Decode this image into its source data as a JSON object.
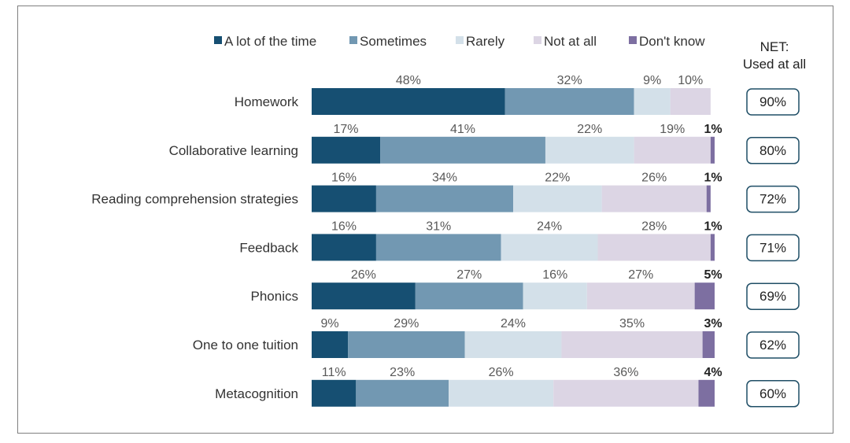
{
  "chart_data": {
    "type": "bar",
    "orientation": "horizontal",
    "stacked": true,
    "categories": [
      "Homework",
      "Collaborative learning",
      "Reading comprehension strategies",
      "Feedback",
      "Phonics",
      "One to one tuition",
      "Metacognition"
    ],
    "series": [
      {
        "name": "A lot of the time",
        "color": "#164f72",
        "values": [
          48,
          17,
          16,
          16,
          26,
          9,
          11
        ]
      },
      {
        "name": "Sometimes",
        "color": "#7298b2",
        "values": [
          32,
          41,
          34,
          31,
          27,
          29,
          23
        ]
      },
      {
        "name": "Rarely",
        "color": "#d3e0e9",
        "values": [
          9,
          22,
          22,
          24,
          16,
          24,
          26
        ]
      },
      {
        "name": "Not at  all",
        "color": "#dcd5e4",
        "values": [
          10,
          19,
          26,
          28,
          27,
          35,
          36
        ]
      },
      {
        "name": "Don't know",
        "color": "#7d6fa1",
        "values": [
          0,
          1,
          1,
          1,
          5,
          3,
          4
        ]
      }
    ],
    "series_labels": [
      [
        "48%",
        "32%",
        "9%",
        "10%",
        ""
      ],
      [
        "17%",
        "41%",
        "22%",
        "19%",
        "1%"
      ],
      [
        "16%",
        "34%",
        "22%",
        "26%",
        "1%"
      ],
      [
        "16%",
        "31%",
        "24%",
        "28%",
        "1%"
      ],
      [
        "26%",
        "27%",
        "16%",
        "27%",
        "5%"
      ],
      [
        "9%",
        "29%",
        "24%",
        "35%",
        "3%"
      ],
      [
        "11%",
        "23%",
        "26%",
        "36%",
        "4%"
      ]
    ],
    "net": {
      "title_line1": "NET:",
      "title_line2": "Used at all",
      "values": [
        "90%",
        "80%",
        "72%",
        "71%",
        "69%",
        "62%",
        "60%"
      ]
    },
    "legend_position": "top",
    "xlim": [
      0,
      100
    ],
    "grid": false
  }
}
